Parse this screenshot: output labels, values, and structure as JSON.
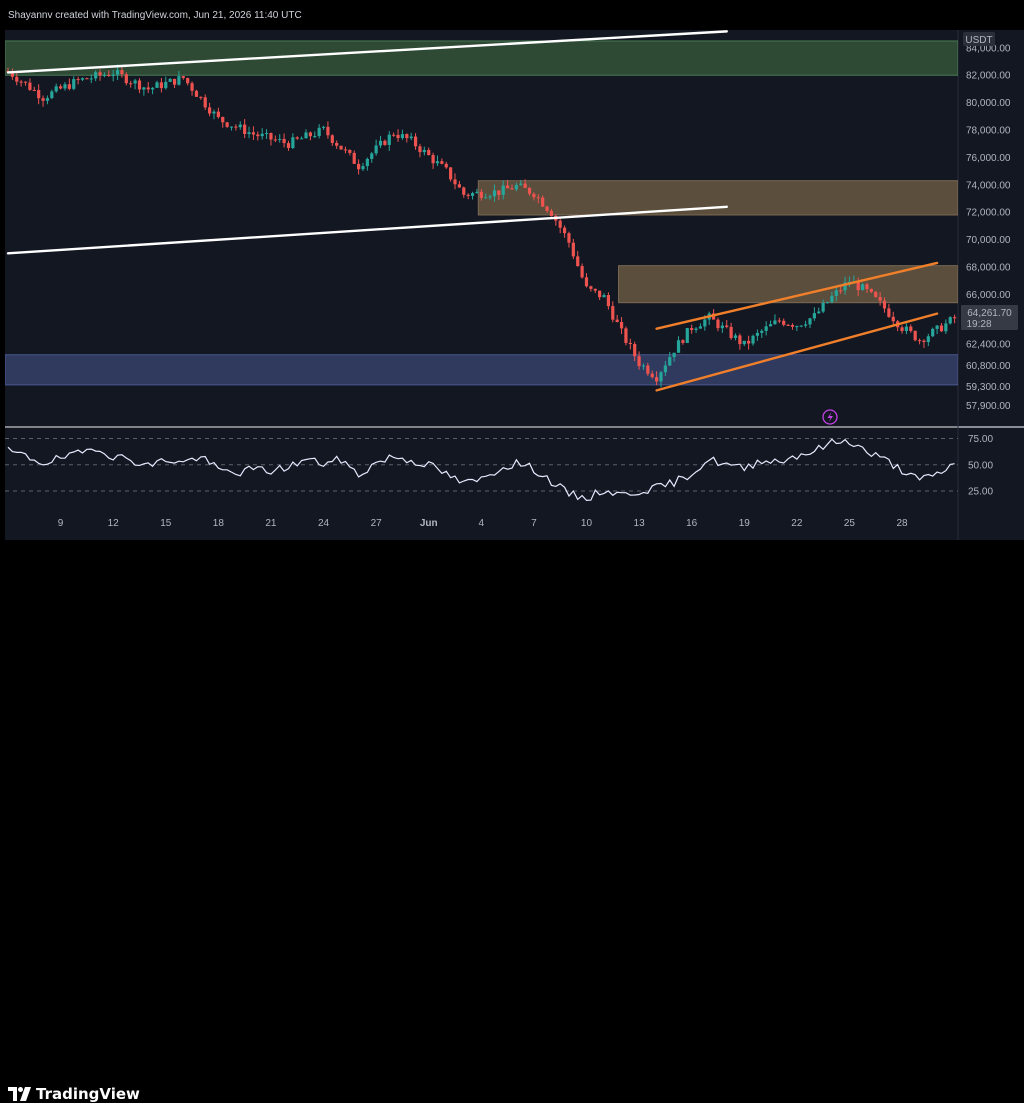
{
  "header": {
    "text": "Shayannv created with TradingView.com, Jun 21, 2026 11:40 UTC"
  },
  "footer": {
    "logo_text": "TradingView"
  },
  "chart_data": [
    {
      "type": "candlestick",
      "quote_currency": "USDT",
      "y_ticks": [
        84000,
        82000,
        80000,
        78000,
        76000,
        74000,
        72000,
        70000,
        68000,
        66000,
        64000,
        62400,
        60800,
        59300,
        57900
      ],
      "y_tick_labels": [
        "84,000.00",
        "82,000.00",
        "80,000.00",
        "78,000.00",
        "76,000.00",
        "74,000.00",
        "72,000.00",
        "70,000.00",
        "68,000.00",
        "66,000.00",
        "64,000.00",
        "62,400.00",
        "60,800.00",
        "59,300.00",
        "57,900.00"
      ],
      "ylim": [
        56400,
        85300
      ],
      "x_tick_labels": [
        "9",
        "12",
        "15",
        "18",
        "21",
        "24",
        "27",
        "Jun",
        "4",
        "7",
        "10",
        "13",
        "16",
        "19",
        "22",
        "25",
        "28"
      ],
      "x_range_days": [
        "May 6",
        "Jun 29"
      ],
      "current_price": "64,261.70",
      "countdown": "19:28",
      "key_points": [
        {
          "day": 0,
          "price": 82300
        },
        {
          "day": 2,
          "price": 80400
        },
        {
          "day": 4,
          "price": 81600
        },
        {
          "day": 6,
          "price": 82200
        },
        {
          "day": 8,
          "price": 81000
        },
        {
          "day": 10,
          "price": 81800
        },
        {
          "day": 12,
          "price": 78800
        },
        {
          "day": 14,
          "price": 77700
        },
        {
          "day": 16,
          "price": 77000
        },
        {
          "day": 18,
          "price": 78000
        },
        {
          "day": 20,
          "price": 75400
        },
        {
          "day": 22,
          "price": 77800
        },
        {
          "day": 23,
          "price": 77200
        },
        {
          "day": 25,
          "price": 75000
        },
        {
          "day": 26,
          "price": 73300
        },
        {
          "day": 28,
          "price": 73500
        },
        {
          "day": 29,
          "price": 73900
        },
        {
          "day": 30,
          "price": 73400
        },
        {
          "day": 31,
          "price": 72000
        },
        {
          "day": 32,
          "price": 69800
        },
        {
          "day": 33,
          "price": 66400
        },
        {
          "day": 34,
          "price": 65800
        },
        {
          "day": 35,
          "price": 63200
        },
        {
          "day": 36,
          "price": 61000
        },
        {
          "day": 37,
          "price": 60000
        },
        {
          "day": 38,
          "price": 62000
        },
        {
          "day": 39,
          "price": 63600
        },
        {
          "day": 40,
          "price": 64300
        },
        {
          "day": 41,
          "price": 63300
        },
        {
          "day": 42,
          "price": 62300
        },
        {
          "day": 43,
          "price": 63300
        },
        {
          "day": 44,
          "price": 64100
        },
        {
          "day": 45,
          "price": 63800
        },
        {
          "day": 46,
          "price": 64400
        },
        {
          "day": 47,
          "price": 65800
        },
        {
          "day": 48,
          "price": 67000
        },
        {
          "day": 49,
          "price": 66200
        },
        {
          "day": 50,
          "price": 65000
        },
        {
          "day": 51,
          "price": 63600
        },
        {
          "day": 52,
          "price": 62700
        },
        {
          "day": 53,
          "price": 63400
        },
        {
          "day": 54,
          "price": 64261.7
        }
      ],
      "zones": [
        {
          "from": 82000,
          "to": 84500,
          "color": "#2e4a35",
          "stroke": "#4a7a55",
          "start_day": 0
        },
        {
          "from": 71800,
          "to": 74300,
          "color": "#5b4e3c",
          "stroke": "#7b6a52",
          "start_day": 27
        },
        {
          "from": 65400,
          "to": 68100,
          "color": "#5b4e3c",
          "stroke": "#7b6a52",
          "start_day": 35
        },
        {
          "from": 59400,
          "to": 61600,
          "color": "#2f3a5e",
          "stroke": "#4a5890",
          "start_day": 0
        }
      ],
      "trendlines": [
        {
          "x1_day": 0,
          "y1": 82200,
          "x2_day": 41,
          "y2": 85200,
          "color": "#ffffff"
        },
        {
          "x1_day": 0,
          "y1": 69000,
          "x2_day": 41,
          "y2": 72400,
          "color": "#ffffff"
        },
        {
          "x1_day": 37,
          "y1": 63500,
          "x2_day": 53,
          "y2": 68300,
          "color": "#ef7f2a"
        },
        {
          "x1_day": 37,
          "y1": 59000,
          "x2_day": 53,
          "y2": 64600,
          "color": "#ef7f2a"
        }
      ],
      "colors": {
        "up": "#26a69a",
        "down": "#ef5350",
        "bg": "#131722"
      }
    },
    {
      "type": "line",
      "indicator": "RSI",
      "y_ticks": [
        75,
        50,
        25
      ],
      "y_tick_labels": [
        "75.00",
        "50.00",
        "25.00"
      ],
      "ylim": [
        5,
        85
      ],
      "key_points": [
        {
          "day": 0,
          "value": 63
        },
        {
          "day": 1,
          "value": 58
        },
        {
          "day": 2,
          "value": 52
        },
        {
          "day": 3,
          "value": 56
        },
        {
          "day": 4,
          "value": 60
        },
        {
          "day": 5,
          "value": 67
        },
        {
          "day": 6,
          "value": 58
        },
        {
          "day": 7,
          "value": 55
        },
        {
          "day": 8,
          "value": 49
        },
        {
          "day": 9,
          "value": 55
        },
        {
          "day": 10,
          "value": 52
        },
        {
          "day": 11,
          "value": 58
        },
        {
          "day": 12,
          "value": 45
        },
        {
          "day": 13,
          "value": 42
        },
        {
          "day": 14,
          "value": 46
        },
        {
          "day": 15,
          "value": 44
        },
        {
          "day": 16,
          "value": 48
        },
        {
          "day": 17,
          "value": 55
        },
        {
          "day": 18,
          "value": 51
        },
        {
          "day": 19,
          "value": 55
        },
        {
          "day": 20,
          "value": 40
        },
        {
          "day": 21,
          "value": 52
        },
        {
          "day": 22,
          "value": 58
        },
        {
          "day": 23,
          "value": 54
        },
        {
          "day": 24,
          "value": 50
        },
        {
          "day": 25,
          "value": 41
        },
        {
          "day": 26,
          "value": 32
        },
        {
          "day": 27,
          "value": 36
        },
        {
          "day": 28,
          "value": 46
        },
        {
          "day": 29,
          "value": 52
        },
        {
          "day": 30,
          "value": 46
        },
        {
          "day": 31,
          "value": 34
        },
        {
          "day": 32,
          "value": 22
        },
        {
          "day": 33,
          "value": 18
        },
        {
          "day": 34,
          "value": 26
        },
        {
          "day": 35,
          "value": 21
        },
        {
          "day": 36,
          "value": 25
        },
        {
          "day": 37,
          "value": 28
        },
        {
          "day": 38,
          "value": 33
        },
        {
          "day": 39,
          "value": 42
        },
        {
          "day": 40,
          "value": 55
        },
        {
          "day": 41,
          "value": 50
        },
        {
          "day": 42,
          "value": 46
        },
        {
          "day": 43,
          "value": 55
        },
        {
          "day": 44,
          "value": 53
        },
        {
          "day": 45,
          "value": 59
        },
        {
          "day": 46,
          "value": 63
        },
        {
          "day": 47,
          "value": 71
        },
        {
          "day": 48,
          "value": 73
        },
        {
          "day": 49,
          "value": 62
        },
        {
          "day": 50,
          "value": 55
        },
        {
          "day": 51,
          "value": 45
        },
        {
          "day": 52,
          "value": 35
        },
        {
          "day": 53,
          "value": 41
        },
        {
          "day": 54,
          "value": 51
        }
      ],
      "color": "#e8e8ff"
    }
  ]
}
